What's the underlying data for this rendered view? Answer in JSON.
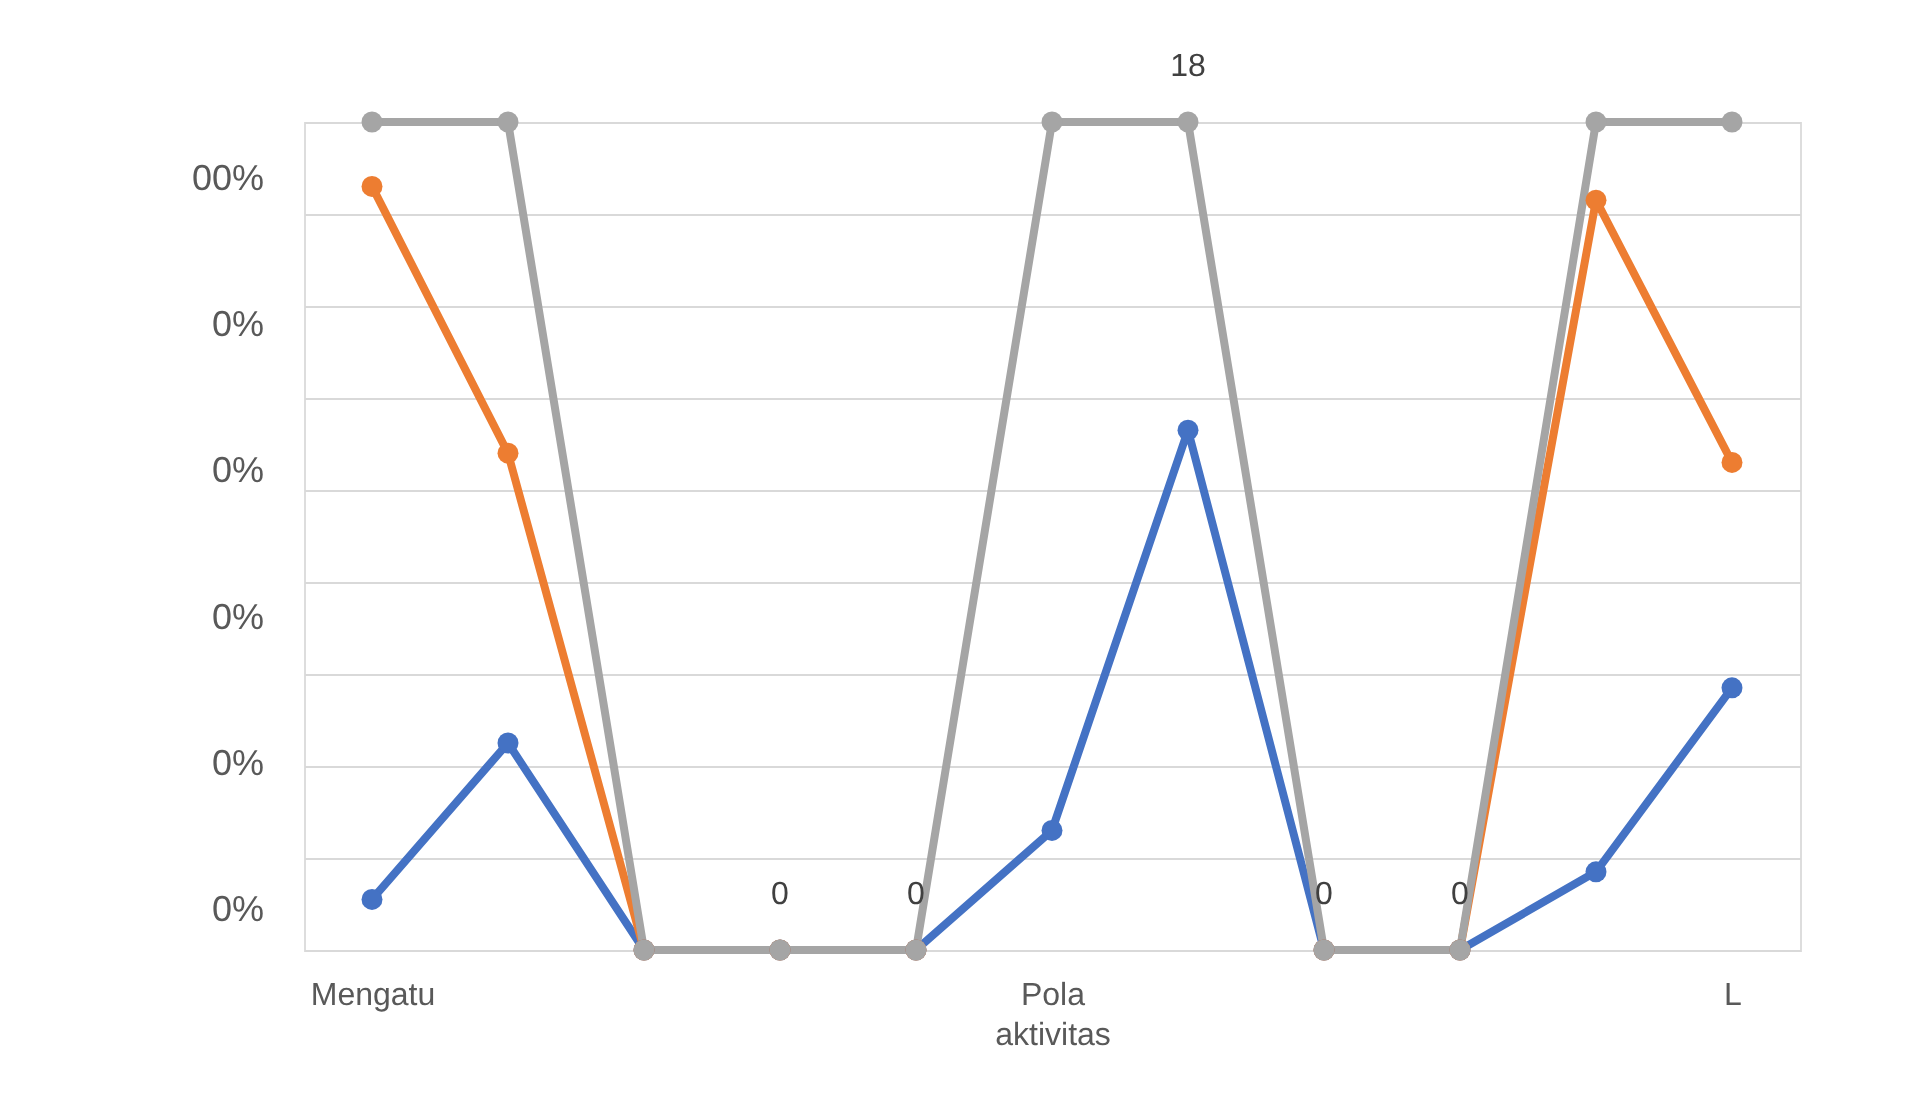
{
  "chart_data": {
    "type": "line",
    "xlabel": "aktivitas",
    "categories": [
      "Mengatu",
      null,
      null,
      null,
      null,
      "Pola",
      null,
      null,
      null,
      null,
      "L"
    ],
    "series": [
      {
        "color": "#4472c4",
        "values": [
          1.1,
          4.5,
          0,
          0,
          0,
          2.6,
          11.3,
          0,
          0,
          1.7,
          5.7
        ]
      },
      {
        "color": "#ed7d31",
        "values": [
          16.6,
          10.8,
          0,
          0,
          0,
          null,
          null,
          0,
          0,
          16.3,
          10.6
        ]
      },
      {
        "color": "#a5a5a5",
        "values": [
          18,
          18,
          0,
          0,
          0,
          18,
          18,
          0,
          0,
          18,
          18
        ],
        "value_labels": [
          null,
          null,
          null,
          "0",
          "0",
          null,
          "18",
          "0",
          "0",
          null,
          null
        ]
      }
    ],
    "ylim": [
      0,
      18
    ],
    "tick_labels": "x",
    "annotations": [
      "00%",
      "0%",
      "0%",
      "0%",
      "0%",
      "0%"
    ],
    "marker": "circle",
    "line_style": "solid",
    "grid": "y"
  }
}
